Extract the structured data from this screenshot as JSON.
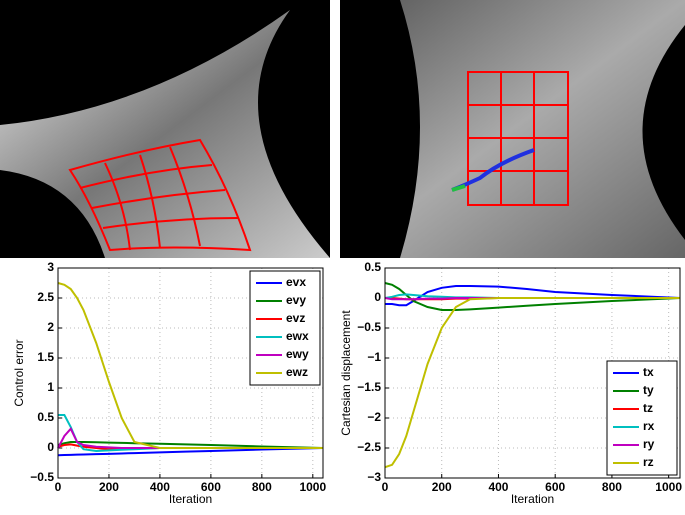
{
  "chart_data": [
    {
      "type": "line",
      "ylabel": "Control error",
      "xlabel": "Iteration",
      "x": [
        0,
        25,
        50,
        75,
        100,
        150,
        200,
        250,
        300,
        400,
        500,
        600,
        800,
        1040
      ],
      "xlim": [
        0,
        1040
      ],
      "xticks": [
        0,
        200,
        400,
        600,
        800,
        1000
      ],
      "ylim": [
        -0.5,
        3
      ],
      "yticks": [
        {
          "value": -0.5,
          "label": "−0.5"
        },
        0,
        0.5,
        1,
        1.5,
        2,
        2.5,
        3
      ],
      "grid": true,
      "legend": "upper right",
      "series": [
        {
          "name": "evx",
          "color": "#0000ff",
          "values": [
            -0.12,
            -0.117,
            -0.114,
            -0.111,
            -0.108,
            -0.103,
            -0.097,
            -0.091,
            -0.085,
            -0.073,
            -0.061,
            -0.05,
            -0.026,
            0
          ]
        },
        {
          "name": "evy",
          "color": "#008000",
          "values": [
            0.05,
            0.08,
            0.1,
            0.1,
            0.1,
            0.095,
            0.09,
            0.085,
            0.08,
            0.07,
            0.06,
            0.05,
            0.025,
            0
          ]
        },
        {
          "name": "evz",
          "color": "#ff0000",
          "values": [
            0.02,
            0.05,
            0.06,
            0.04,
            0.02,
            0,
            -0.02,
            -0.02,
            -0.01,
            0,
            0,
            0,
            0,
            0
          ]
        },
        {
          "name": "ewx",
          "color": "#00bfbf",
          "values": [
            0.55,
            0.55,
            0.35,
            0.1,
            -0.02,
            -0.05,
            -0.04,
            -0.03,
            -0.02,
            0,
            0,
            0,
            0,
            0
          ]
        },
        {
          "name": "ewy",
          "color": "#bf00bf",
          "values": [
            0,
            0.2,
            0.32,
            0.1,
            0.05,
            0.02,
            0.01,
            0,
            0,
            0,
            0,
            0,
            0,
            0
          ]
        },
        {
          "name": "ewz",
          "color": "#bfbf00",
          "values": [
            2.75,
            2.72,
            2.65,
            2.5,
            2.3,
            1.75,
            1.1,
            0.5,
            0.1,
            0,
            0,
            0,
            0,
            0
          ]
        }
      ]
    },
    {
      "type": "line",
      "ylabel": "Cartesian displacement",
      "xlabel": "Iteration",
      "x": [
        0,
        25,
        50,
        75,
        100,
        150,
        200,
        250,
        300,
        400,
        500,
        600,
        800,
        1040
      ],
      "xlim": [
        0,
        1040
      ],
      "xticks": [
        0,
        200,
        400,
        600,
        800,
        1000
      ],
      "ylim": [
        -3,
        0.5
      ],
      "yticks": [
        {
          "value": -3,
          "label": "−3"
        },
        {
          "value": -2.5,
          "label": "−2.5"
        },
        {
          "value": -2,
          "label": "−2"
        },
        {
          "value": -1.5,
          "label": "−1.5"
        },
        {
          "value": -1,
          "label": "−1"
        },
        {
          "value": -0.5,
          "label": "−0.5"
        },
        0,
        0.5
      ],
      "grid": true,
      "legend": "lower right",
      "series": [
        {
          "name": "tx",
          "color": "#0000ff",
          "values": [
            -0.1,
            -0.1,
            -0.12,
            -0.12,
            -0.05,
            0.1,
            0.17,
            0.2,
            0.2,
            0.19,
            0.15,
            0.1,
            0.05,
            0
          ]
        },
        {
          "name": "ty",
          "color": "#008000",
          "values": [
            0.25,
            0.22,
            0.15,
            0.05,
            -0.05,
            -0.15,
            -0.2,
            -0.2,
            -0.19,
            -0.16,
            -0.13,
            -0.1,
            -0.05,
            0
          ]
        },
        {
          "name": "tz",
          "color": "#ff0000",
          "values": [
            0,
            0,
            -0.01,
            -0.02,
            -0.02,
            -0.02,
            -0.02,
            -0.01,
            -0.01,
            0,
            0,
            0,
            0,
            0
          ]
        },
        {
          "name": "rx",
          "color": "#00bfbf",
          "values": [
            0,
            0.02,
            0.05,
            0.06,
            0.05,
            0.03,
            0.02,
            0.01,
            0.01,
            0,
            0,
            0,
            0,
            0
          ]
        },
        {
          "name": "ry",
          "color": "#bf00bf",
          "values": [
            0,
            -0.02,
            -0.02,
            -0.02,
            -0.02,
            -0.01,
            -0.01,
            0,
            0,
            0,
            0,
            0,
            0,
            0
          ]
        },
        {
          "name": "rz",
          "color": "#bfbf00",
          "values": [
            -2.82,
            -2.78,
            -2.6,
            -2.3,
            -1.9,
            -1.1,
            -0.5,
            -0.15,
            -0.02,
            0,
            0,
            0,
            0,
            0
          ]
        }
      ]
    }
  ]
}
